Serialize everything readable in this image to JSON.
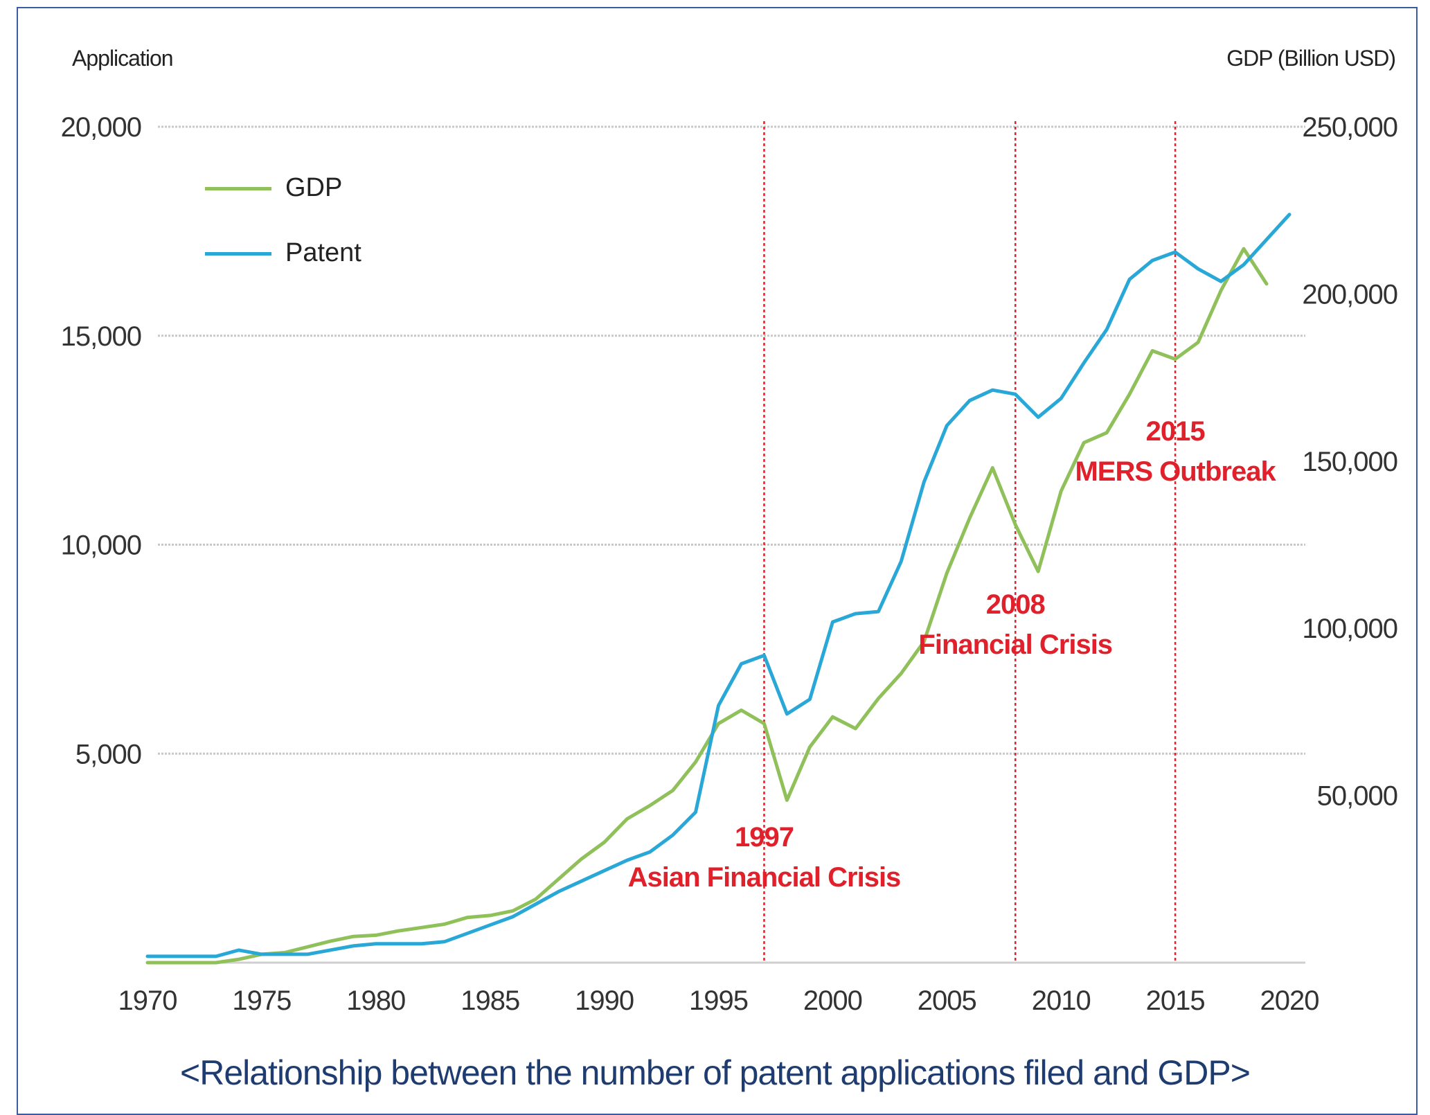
{
  "chart_data": {
    "type": "line",
    "title": "",
    "caption": "<Relationship between the number of patent applications filed and GDP>",
    "ylabel_left": "Application",
    "ylabel_right": "GDP (Billion USD)",
    "xlim": [
      1970,
      2020
    ],
    "ylim_left": [
      0,
      20000
    ],
    "ylim_right": [
      0,
      250000
    ],
    "x_ticks": [
      "1970",
      "1975",
      "1980",
      "1985",
      "1990",
      "1995",
      "2000",
      "2005",
      "2010",
      "2015",
      "2020"
    ],
    "y_left_ticks": [
      "5,000",
      "10,000",
      "15,000",
      "20,000"
    ],
    "y_left_tick_values": [
      5000,
      10000,
      15000,
      20000
    ],
    "y_right_ticks": [
      "50,000",
      "100,000",
      "150,000",
      "200,000",
      "250,000"
    ],
    "y_right_tick_values": [
      50000,
      100000,
      150000,
      200000,
      250000
    ],
    "grid": true,
    "legend_position": "top-left",
    "series": [
      {
        "name": "GDP",
        "axis": "right",
        "color": "#8fc05a",
        "x": [
          1970,
          1971,
          1972,
          1973,
          1974,
          1975,
          1976,
          1977,
          1978,
          1979,
          1980,
          1981,
          1982,
          1983,
          1984,
          1985,
          1986,
          1987,
          1988,
          1989,
          1990,
          1991,
          1992,
          1993,
          1994,
          1995,
          1996,
          1997,
          1998,
          1999,
          2000,
          2001,
          2002,
          2003,
          2004,
          2005,
          2006,
          2007,
          2008,
          2009,
          2010,
          2011,
          2012,
          2013,
          2014,
          2015,
          2016,
          2017,
          2018,
          2019
        ],
        "values": [
          0,
          0,
          0,
          0,
          1000,
          2500,
          3000,
          4700,
          6400,
          7800,
          8200,
          9500,
          10500,
          11500,
          13500,
          14100,
          15500,
          19000,
          25000,
          31000,
          36000,
          43000,
          47000,
          51500,
          60000,
          71500,
          75500,
          71500,
          48600,
          64500,
          73500,
          70000,
          79000,
          86500,
          96000,
          116500,
          133000,
          148000,
          131000,
          117000,
          141000,
          155500,
          158500,
          170000,
          183000,
          180500,
          185500,
          201000,
          213500,
          203000
        ]
      },
      {
        "name": "Patent",
        "axis": "left",
        "color": "#29a8d8",
        "x": [
          1970,
          1971,
          1972,
          1973,
          1974,
          1975,
          1976,
          1977,
          1978,
          1979,
          1980,
          1981,
          1982,
          1983,
          1984,
          1985,
          1986,
          1987,
          1988,
          1989,
          1990,
          1991,
          1992,
          1993,
          1994,
          1995,
          1996,
          1997,
          1998,
          1999,
          2000,
          2001,
          2002,
          2003,
          2004,
          2005,
          2006,
          2007,
          2008,
          2009,
          2010,
          2011,
          2012,
          2013,
          2014,
          2015,
          2016,
          2017,
          2018,
          2019,
          2020
        ],
        "values": [
          150,
          150,
          150,
          150,
          300,
          200,
          200,
          200,
          300,
          400,
          450,
          450,
          450,
          500,
          700,
          900,
          1100,
          1400,
          1700,
          1950,
          2200,
          2450,
          2650,
          3050,
          3600,
          6150,
          7150,
          7350,
          5950,
          6300,
          8150,
          8350,
          8400,
          9600,
          11500,
          12850,
          13450,
          13700,
          13600,
          13050,
          13500,
          14350,
          15150,
          16350,
          16800,
          17000,
          16600,
          16300,
          16700,
          17300,
          17900
        ]
      }
    ],
    "annotations": [
      {
        "x": 1997,
        "year": "1997",
        "label": "Asian Financial Crisis",
        "color": "#e0202a"
      },
      {
        "x": 2008,
        "year": "2008",
        "label": "Financial Crisis",
        "color": "#e0202a"
      },
      {
        "x": 2015,
        "year": "2015",
        "label": "MERS Outbreak",
        "color": "#e0202a"
      }
    ]
  }
}
